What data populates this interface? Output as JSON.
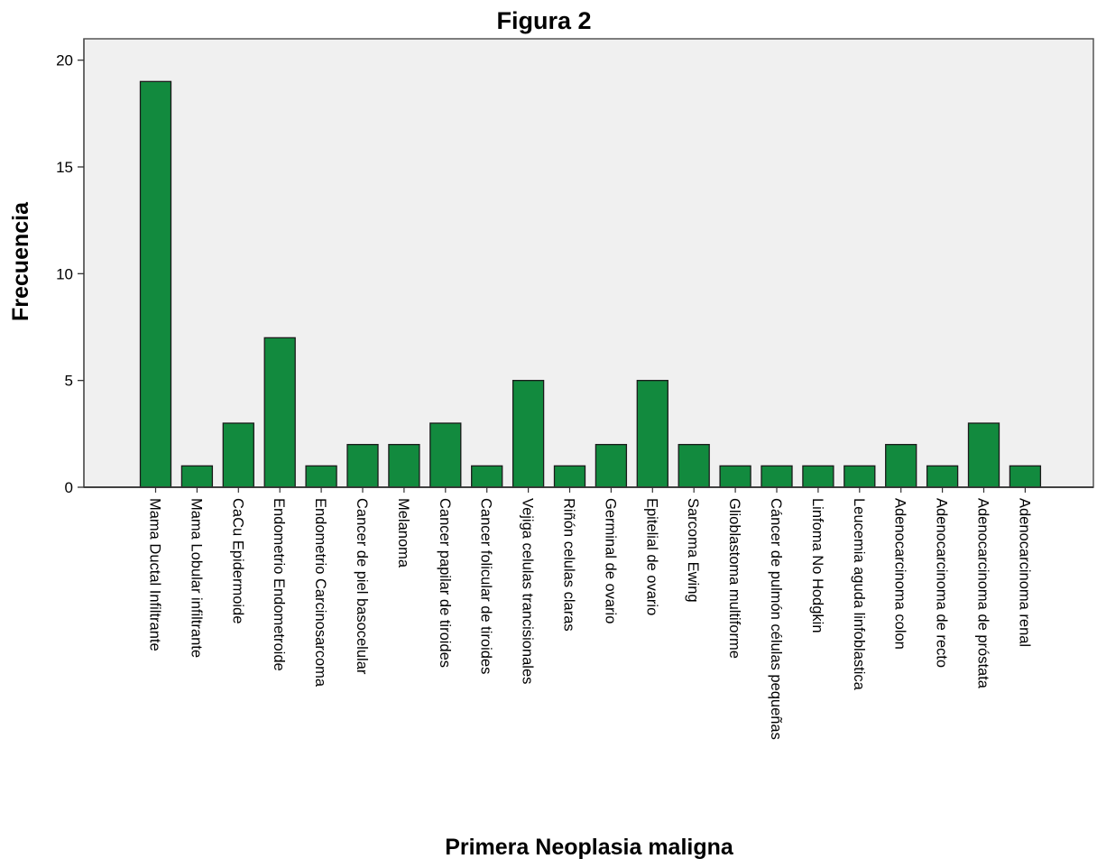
{
  "chart_data": {
    "type": "bar",
    "title": "Figura 2",
    "xlabel": "Primera Neoplasia maligna",
    "ylabel": "Frecuencia",
    "ylim": [
      0,
      21
    ],
    "yticks": [
      0,
      5,
      10,
      15,
      20
    ],
    "grid": false,
    "bar_color": "#128a3e",
    "bar_edge_color": "#1a1a1a",
    "plot_background": "#f0f0f0",
    "categories": [
      "Mama Ductal Infiltrante",
      "Mama Lobular infiltrante",
      "CaCu Epidermoide",
      "Endometrio Endometroide",
      "Endometrio Carcinosarcoma",
      "Cancer de piel basocelular",
      "Melanoma",
      "Cancer papilar de tiroides",
      "Cancer folicular de tiroides",
      "Vejiga celulas trancisionales",
      "Riñón celulas claras",
      "Germinal de ovario",
      "Epitelial de ovario",
      "Sarcoma Ewing",
      "Glioblastoma multiforme",
      "Cáncer de pulmón células pequeñas",
      "Linfoma No Hodgkin",
      "Leucemia aguda linfoblastica",
      "Adenocarcinoma colon",
      "Adenocarcinoma de recto",
      "Adenocarcinoma de próstata",
      "Adenocarcinoma renal"
    ],
    "values": [
      19,
      1,
      3,
      7,
      1,
      2,
      2,
      3,
      1,
      5,
      1,
      2,
      5,
      2,
      1,
      1,
      1,
      1,
      2,
      1,
      3,
      1
    ]
  }
}
